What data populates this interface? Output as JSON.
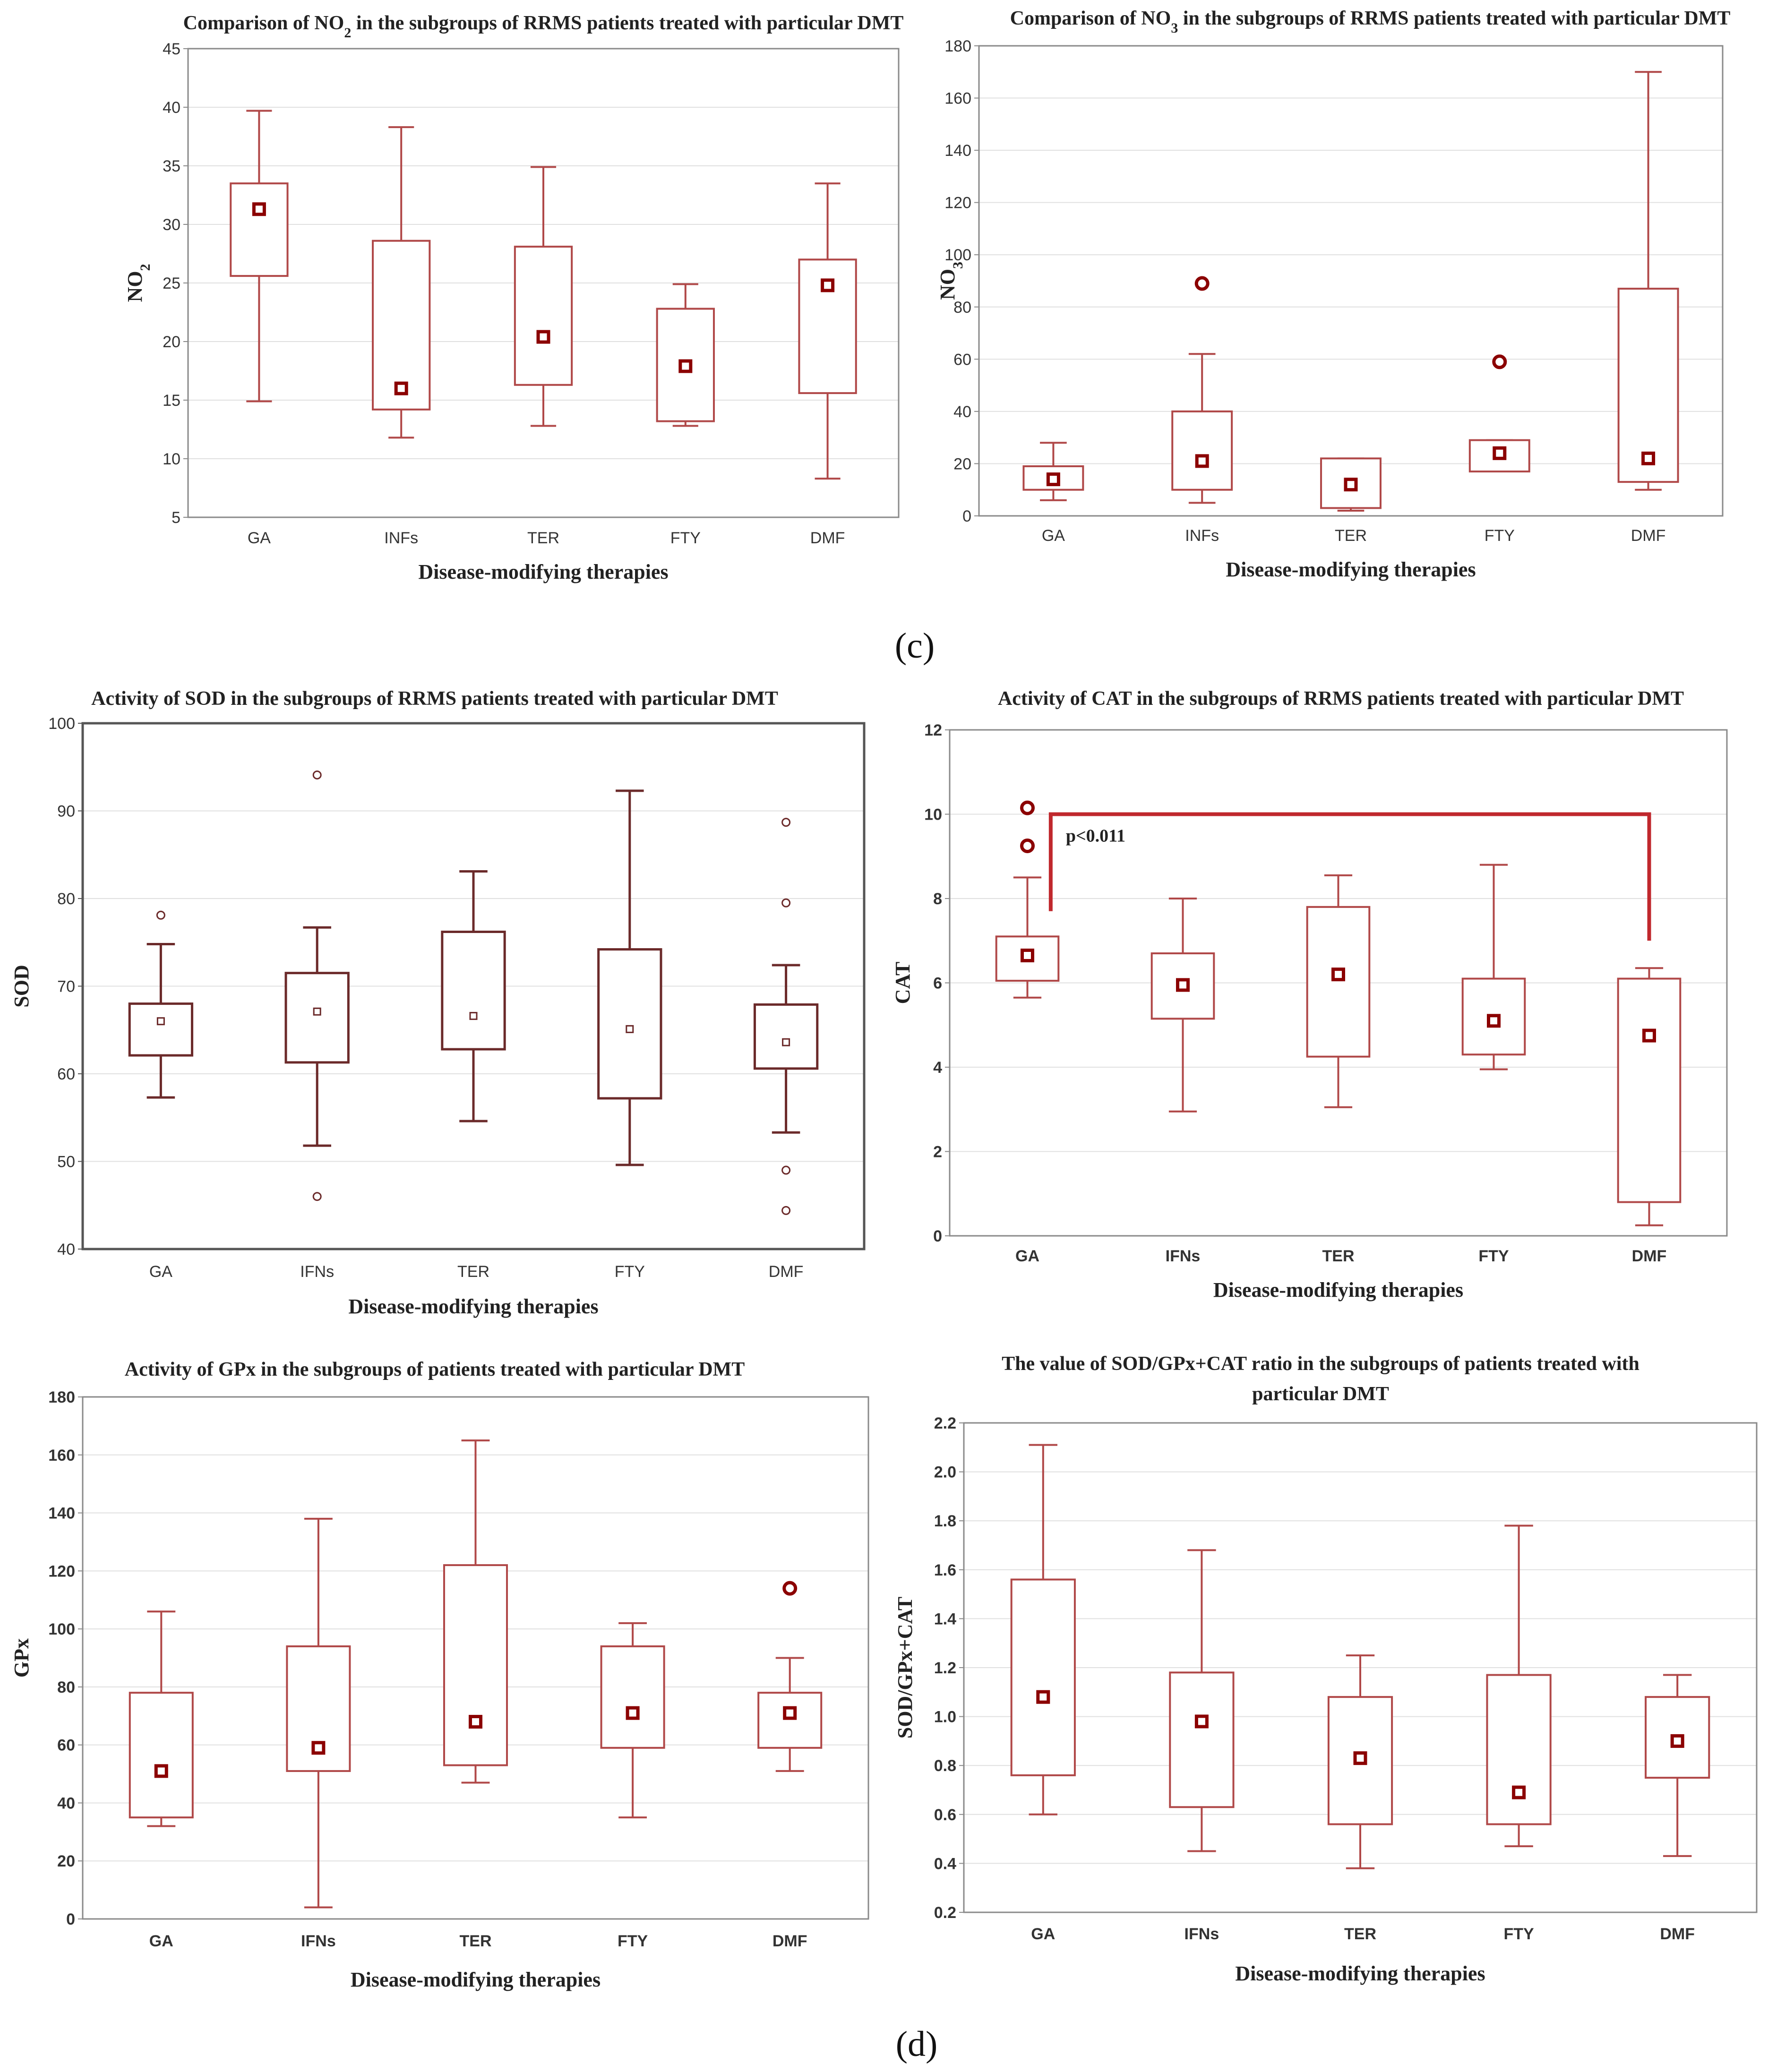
{
  "panel_labels": {
    "c": "(c)",
    "d": "(d)"
  },
  "chart_data": [
    {
      "type": "box",
      "title_parts": [
        "Comparison of NO",
        "2",
        " in the subgroups of RRMS patients treated with particular DMT"
      ],
      "ylabel_parts": [
        "NO",
        "2"
      ],
      "xlabel": "Disease-modifying therapies",
      "categories": [
        "GA",
        "INFs",
        "TER",
        "FTY",
        "DMF"
      ],
      "ylim": [
        5,
        45
      ],
      "yticks": [
        5,
        10,
        15,
        20,
        25,
        30,
        35,
        40,
        45
      ],
      "grid": true,
      "series": [
        {
          "name": "GA",
          "whisker_low": 14.9,
          "q1": 25.6,
          "median": 31.3,
          "q3": 33.5,
          "whisker_high": 39.7,
          "outliers": []
        },
        {
          "name": "INFs",
          "whisker_low": 11.8,
          "q1": 14.2,
          "median": 16.0,
          "q3": 28.6,
          "whisker_high": 38.3,
          "outliers": []
        },
        {
          "name": "TER",
          "whisker_low": 12.8,
          "q1": 16.3,
          "median": 20.4,
          "q3": 28.1,
          "whisker_high": 34.9,
          "outliers": []
        },
        {
          "name": "FTY",
          "whisker_low": 12.8,
          "q1": 13.2,
          "median": 17.9,
          "q3": 22.8,
          "whisker_high": 24.9,
          "outliers": []
        },
        {
          "name": "DMF",
          "whisker_low": 8.3,
          "q1": 15.6,
          "median": 24.8,
          "q3": 27.0,
          "whisker_high": 33.5,
          "outliers": []
        }
      ]
    },
    {
      "type": "box",
      "title_parts": [
        "Comparison of NO",
        "3",
        " in the subgroups of RRMS patients treated with particular DMT"
      ],
      "ylabel_parts": [
        "NO",
        "3"
      ],
      "xlabel": "Disease-modifying therapies",
      "categories": [
        "GA",
        "INFs",
        "TER",
        "FTY",
        "DMF"
      ],
      "ylim": [
        0,
        180
      ],
      "yticks": [
        0,
        20,
        40,
        60,
        80,
        100,
        120,
        140,
        160,
        180
      ],
      "grid": true,
      "series": [
        {
          "name": "GA",
          "whisker_low": 6,
          "q1": 10,
          "median": 14,
          "q3": 19,
          "whisker_high": 28,
          "outliers": []
        },
        {
          "name": "INFs",
          "whisker_low": 5,
          "q1": 10,
          "median": 21,
          "q3": 40,
          "whisker_high": 62,
          "outliers": [
            89
          ]
        },
        {
          "name": "TER",
          "whisker_low": 2,
          "q1": 3,
          "median": 12,
          "q3": 22,
          "whisker_high": 22,
          "outliers": []
        },
        {
          "name": "FTY",
          "whisker_low": 17,
          "q1": 17,
          "median": 24,
          "q3": 29,
          "whisker_high": 29,
          "outliers": [
            59
          ]
        },
        {
          "name": "DMF",
          "whisker_low": 10,
          "q1": 13,
          "median": 22,
          "q3": 87,
          "whisker_high": 170,
          "outliers": []
        }
      ]
    },
    {
      "type": "box",
      "title_parts": [
        "Activity of SOD in the subgroups of RRMS patients treated with particular DMT"
      ],
      "ylabel_parts": [
        "SOD"
      ],
      "xlabel": "Disease-modifying therapies",
      "categories": [
        "GA",
        "IFNs",
        "TER",
        "FTY",
        "DMF"
      ],
      "ylim": [
        40,
        100
      ],
      "yticks": [
        40,
        50,
        60,
        70,
        80,
        90,
        100
      ],
      "grid": true,
      "series": [
        {
          "name": "GA",
          "whisker_low": 57.3,
          "q1": 62.1,
          "median": 66.0,
          "q3": 68.0,
          "whisker_high": 74.8,
          "outliers": [
            78.1
          ]
        },
        {
          "name": "IFNs",
          "whisker_low": 51.8,
          "q1": 61.3,
          "median": 67.1,
          "q3": 71.5,
          "whisker_high": 76.7,
          "outliers": [
            94.1,
            46.0
          ]
        },
        {
          "name": "TER",
          "whisker_low": 54.6,
          "q1": 62.8,
          "median": 66.6,
          "q3": 76.2,
          "whisker_high": 83.1,
          "outliers": []
        },
        {
          "name": "FTY",
          "whisker_low": 49.6,
          "q1": 57.2,
          "median": 65.1,
          "q3": 74.2,
          "whisker_high": 92.3,
          "outliers": []
        },
        {
          "name": "DMF",
          "whisker_low": 53.3,
          "q1": 60.6,
          "median": 63.6,
          "q3": 67.9,
          "whisker_high": 72.4,
          "outliers": [
            88.7,
            79.5,
            49.0,
            44.4
          ]
        }
      ]
    },
    {
      "type": "box",
      "title_parts": [
        "Activity of CAT in the subgroups of RRMS patients treated with particular DMT"
      ],
      "ylabel_parts": [
        "CAT"
      ],
      "xlabel": "Disease-modifying therapies",
      "categories": [
        "GA",
        "IFNs",
        "TER",
        "FTY",
        "DMF"
      ],
      "ylim": [
        0,
        12
      ],
      "yticks": [
        0,
        2,
        4,
        6,
        8,
        10,
        12
      ],
      "grid": true,
      "annotation": "p<0.011",
      "series": [
        {
          "name": "GA",
          "whisker_low": 5.65,
          "q1": 6.05,
          "median": 6.65,
          "q3": 7.1,
          "whisker_high": 8.5,
          "outliers": [
            10.15,
            9.25
          ]
        },
        {
          "name": "IFNs",
          "whisker_low": 2.95,
          "q1": 5.15,
          "median": 5.95,
          "q3": 6.7,
          "whisker_high": 8.0,
          "outliers": []
        },
        {
          "name": "TER",
          "whisker_low": 3.05,
          "q1": 4.25,
          "median": 6.2,
          "q3": 7.8,
          "whisker_high": 8.55,
          "outliers": []
        },
        {
          "name": "FTY",
          "whisker_low": 3.95,
          "q1": 4.3,
          "median": 5.1,
          "q3": 6.1,
          "whisker_high": 8.8,
          "outliers": []
        },
        {
          "name": "DMF",
          "whisker_low": 0.25,
          "q1": 0.8,
          "median": 4.75,
          "q3": 6.1,
          "whisker_high": 6.35,
          "outliers": []
        }
      ]
    },
    {
      "type": "box",
      "title_parts": [
        "Activity of GPx in the subgroups of patients treated with particular DMT"
      ],
      "ylabel_parts": [
        "GPx"
      ],
      "xlabel": "Disease-modifying therapies",
      "categories": [
        "GA",
        "IFNs",
        "TER",
        "FTY",
        "DMF"
      ],
      "ylim": [
        0,
        180
      ],
      "yticks": [
        0,
        20,
        40,
        60,
        80,
        100,
        120,
        140,
        160,
        180
      ],
      "grid": true,
      "series": [
        {
          "name": "GA",
          "whisker_low": 32,
          "q1": 35,
          "median": 51,
          "q3": 78,
          "whisker_high": 106,
          "outliers": []
        },
        {
          "name": "IFNs",
          "whisker_low": 4,
          "q1": 51,
          "median": 59,
          "q3": 94,
          "whisker_high": 138,
          "outliers": []
        },
        {
          "name": "TER",
          "whisker_low": 47,
          "q1": 53,
          "median": 68,
          "q3": 122,
          "whisker_high": 165,
          "outliers": []
        },
        {
          "name": "FTY",
          "whisker_low": 35,
          "q1": 59,
          "median": 71,
          "q3": 94,
          "whisker_high": 102,
          "outliers": []
        },
        {
          "name": "DMF",
          "whisker_low": 51,
          "q1": 59,
          "median": 71,
          "q3": 78,
          "whisker_high": 90,
          "outliers": [
            114
          ]
        }
      ]
    },
    {
      "type": "box",
      "title_parts": [
        "The value of SOD/GPx+CAT ratio in the subgroups of patients treated with",
        "particular DMT"
      ],
      "ylabel_parts": [
        "SOD/GPx+CAT"
      ],
      "xlabel": "Disease-modifying therapies",
      "categories": [
        "GA",
        "IFNs",
        "TER",
        "FTY",
        "DMF"
      ],
      "ylim": [
        0.2,
        2.2
      ],
      "yticks": [
        0.2,
        0.4,
        0.6,
        0.8,
        1.0,
        1.2,
        1.4,
        1.6,
        1.8,
        2.0,
        2.2
      ],
      "grid": true,
      "series": [
        {
          "name": "GA",
          "whisker_low": 0.6,
          "q1": 0.76,
          "median": 1.08,
          "q3": 1.56,
          "whisker_high": 2.11,
          "outliers": []
        },
        {
          "name": "IFNs",
          "whisker_low": 0.45,
          "q1": 0.63,
          "median": 0.98,
          "q3": 1.18,
          "whisker_high": 1.68,
          "outliers": []
        },
        {
          "name": "TER",
          "whisker_low": 0.38,
          "q1": 0.56,
          "median": 0.83,
          "q3": 1.08,
          "whisker_high": 1.25,
          "outliers": []
        },
        {
          "name": "FTY",
          "whisker_low": 0.47,
          "q1": 0.56,
          "median": 0.69,
          "q3": 1.17,
          "whisker_high": 1.78,
          "outliers": []
        },
        {
          "name": "DMF",
          "whisker_low": 0.43,
          "q1": 0.75,
          "median": 0.9,
          "q3": 1.08,
          "whisker_high": 1.17,
          "outliers": []
        }
      ]
    }
  ]
}
